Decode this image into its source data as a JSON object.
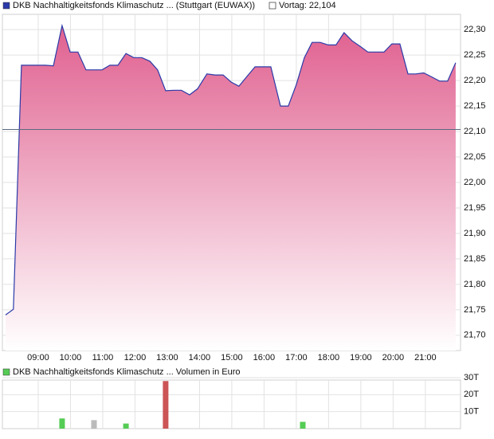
{
  "chart_data": [
    {
      "type": "area",
      "series": [
        {
          "name": "DKB Nachhaltigkeitsfonds Klimaschutz ... (Stuttgart (EUWAX))",
          "color": "#2a3aa8",
          "x": [
            7.99,
            8.23,
            8.48,
            8.73,
            9.22,
            9.47,
            9.74,
            9.99,
            10.23,
            10.48,
            10.73,
            10.98,
            11.22,
            11.47,
            11.72,
            11.96,
            12.21,
            12.46,
            12.7,
            12.95,
            13.2,
            13.44,
            13.69,
            13.94,
            14.23,
            14.48,
            14.73,
            14.98,
            15.22,
            15.47,
            15.72,
            16.21,
            16.51,
            16.75,
            17.0,
            17.25,
            17.49,
            17.74,
            17.99,
            18.23,
            18.48,
            18.73,
            18.98,
            19.22,
            19.47,
            19.72,
            19.96,
            20.21,
            20.46,
            20.7,
            20.95,
            21.2,
            21.44,
            21.69,
            21.94
          ],
          "values": [
            21.74,
            21.751,
            22.23,
            22.23,
            22.23,
            22.229,
            22.308,
            22.256,
            22.256,
            22.221,
            22.221,
            22.221,
            22.23,
            22.23,
            22.253,
            22.245,
            22.245,
            22.238,
            22.221,
            22.18,
            22.181,
            22.181,
            22.172,
            22.184,
            22.213,
            22.211,
            22.211,
            22.197,
            22.189,
            22.208,
            22.227,
            22.227,
            22.15,
            22.15,
            22.192,
            22.245,
            22.275,
            22.275,
            22.27,
            22.27,
            22.294,
            22.278,
            22.267,
            22.256,
            22.256,
            22.256,
            22.272,
            22.272,
            22.213,
            22.213,
            22.215,
            22.207,
            22.199,
            22.199,
            22.235
          ]
        }
      ],
      "fill_top": "#e0608f",
      "fill_bottom": "#ffffff",
      "reference_line": {
        "value": 22.104,
        "label": "Vortag: 22,104",
        "color": "#5a6a80"
      },
      "xlim": [
        7.89,
        22.09
      ],
      "xticks": [
        {
          "value": 9,
          "label": "09:00"
        },
        {
          "value": 10,
          "label": "10:00"
        },
        {
          "value": 11,
          "label": "11:00"
        },
        {
          "value": 12,
          "label": "12:00"
        },
        {
          "value": 13,
          "label": "13:00"
        },
        {
          "value": 14,
          "label": "14:00"
        },
        {
          "value": 15,
          "label": "15:00"
        },
        {
          "value": 16,
          "label": "16:00"
        },
        {
          "value": 17,
          "label": "17:00"
        },
        {
          "value": 18,
          "label": "18:00"
        },
        {
          "value": 19,
          "label": "19:00"
        },
        {
          "value": 20,
          "label": "20:00"
        },
        {
          "value": 21,
          "label": "21:00"
        }
      ],
      "ylim": [
        21.67,
        22.33
      ],
      "yticks": [
        {
          "value": 21.7,
          "label": "21,70"
        },
        {
          "value": 21.75,
          "label": "21,75"
        },
        {
          "value": 21.8,
          "label": "21,80"
        },
        {
          "value": 21.85,
          "label": "21,85"
        },
        {
          "value": 21.9,
          "label": "21,90"
        },
        {
          "value": 21.95,
          "label": "21,95"
        },
        {
          "value": 22.0,
          "label": "22,00"
        },
        {
          "value": 22.05,
          "label": "22,05"
        },
        {
          "value": 22.1,
          "label": "22,10"
        },
        {
          "value": 22.15,
          "label": "22,15"
        },
        {
          "value": 22.2,
          "label": "22,20"
        },
        {
          "value": 22.25,
          "label": "22,25"
        },
        {
          "value": 22.3,
          "label": "22,30"
        }
      ],
      "grid": true
    },
    {
      "type": "bar",
      "series": [
        {
          "name": "DKB Nachhaltigkeitsfonds Klimaschutz ... Volumen in Euro",
          "color": "#55cc55",
          "x": [
            9.74,
            10.73,
            11.72,
            12.95,
            17.2
          ],
          "values": [
            6,
            5,
            3,
            28,
            4
          ],
          "colors": [
            "#55cc55",
            "#bbbbbb",
            "#55cc55",
            "#cc5555",
            "#55cc55"
          ]
        }
      ],
      "xlim": [
        7.89,
        22.09
      ],
      "xticks": [
        9,
        10,
        11,
        12,
        13,
        14,
        15,
        16,
        17,
        18,
        19,
        20,
        21
      ],
      "ylim": [
        0,
        30
      ],
      "yticks": [
        {
          "value": 10,
          "label": "10T"
        },
        {
          "value": 20,
          "label": "20T"
        },
        {
          "value": 30,
          "label": "30T"
        }
      ],
      "grid": true
    }
  ]
}
